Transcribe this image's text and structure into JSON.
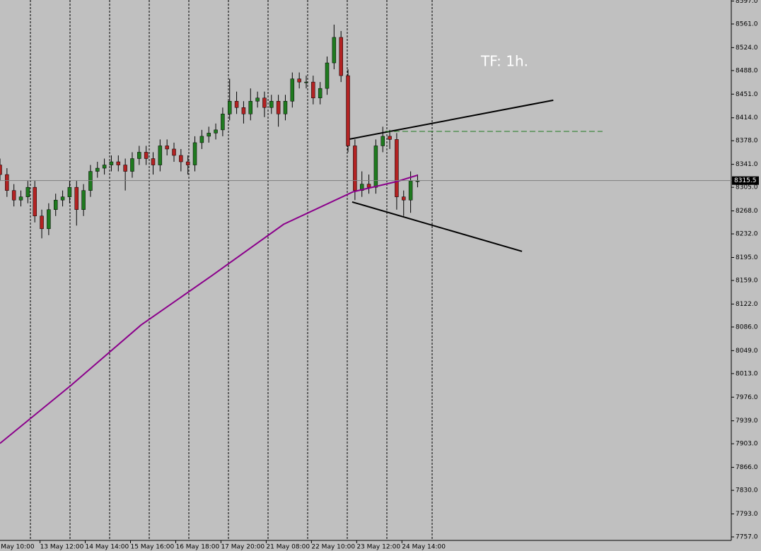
{
  "chart_data": {
    "type": "candlestick",
    "annotation": "TF: 1h.",
    "xlim": [
      0,
      420.3
    ],
    "ylim": [
      7751.5,
      8598.6
    ],
    "xticks": [
      {
        "value": -3,
        "label": "0 May 10:00"
      },
      {
        "value": 23,
        "label": "13 May 12:00"
      },
      {
        "value": 49,
        "label": "14 May 14:00"
      },
      {
        "value": 75,
        "label": "15 May 16:00"
      },
      {
        "value": 101,
        "label": "16 May 18:00"
      },
      {
        "value": 127,
        "label": "17 May 20:00"
      },
      {
        "value": 153,
        "label": "21 May 08:00"
      },
      {
        "value": 179,
        "label": "22 May 10:00"
      },
      {
        "value": 205,
        "label": "23 May 12:00"
      },
      {
        "value": 231,
        "label": "24 May 14:00"
      }
    ],
    "yticks": [
      {
        "value": 8597,
        "label": "8597.0"
      },
      {
        "value": 8561,
        "label": "8561.0"
      },
      {
        "value": 8524,
        "label": "8524.0"
      },
      {
        "value": 8488,
        "label": "8488.0"
      },
      {
        "value": 8451,
        "label": "8451.0"
      },
      {
        "value": 8414,
        "label": "8414.0"
      },
      {
        "value": 8378,
        "label": "8378.0"
      },
      {
        "value": 8341,
        "label": "8341.0"
      },
      {
        "value": 8305,
        "label": "8305.0"
      },
      {
        "value": 8268,
        "label": "8268.0"
      },
      {
        "value": 8232,
        "label": "8232.0"
      },
      {
        "value": 8195,
        "label": "8195.0"
      },
      {
        "value": 8159,
        "label": "8159.0"
      },
      {
        "value": 8122,
        "label": "8122.0"
      },
      {
        "value": 8086,
        "label": "8086.0"
      },
      {
        "value": 8049,
        "label": "8049.0"
      },
      {
        "value": 8013,
        "label": "8013.0"
      },
      {
        "value": 7976,
        "label": "7976.0"
      },
      {
        "value": 7939,
        "label": "7939.0"
      },
      {
        "value": 7903,
        "label": "7903.0"
      },
      {
        "value": 7866,
        "label": "7866.0"
      },
      {
        "value": 7830,
        "label": "7830.0"
      },
      {
        "value": 7793,
        "label": "7793.0"
      },
      {
        "value": 7757,
        "label": "7757.0"
      }
    ],
    "last_price": 8315.5,
    "up_color": "#1f7a1f",
    "down_color": "#b22222",
    "candles": {
      "x": [
        0,
        4,
        8,
        12,
        16,
        20,
        24,
        28,
        32,
        36,
        40,
        44,
        48,
        52,
        56,
        60,
        64,
        68,
        72,
        76,
        80,
        84,
        88,
        92,
        96,
        100,
        104,
        108,
        112,
        116,
        120,
        124,
        128,
        132,
        136,
        140,
        144,
        148,
        152,
        156,
        160,
        164,
        168,
        172,
        176,
        180,
        184,
        188,
        192,
        196,
        200,
        204,
        208,
        212,
        216,
        220,
        224,
        228,
        232,
        236,
        240
      ],
      "open": [
        8340,
        8325,
        8300,
        8285,
        8290,
        8305,
        8260,
        8240,
        8270,
        8285,
        8290,
        8305,
        8270,
        8300,
        8330,
        8335,
        8340,
        8345,
        8340,
        8330,
        8350,
        8360,
        8350,
        8340,
        8370,
        8365,
        8355,
        8345,
        8340,
        8375,
        8385,
        8390,
        8395,
        8420,
        8440,
        8430,
        8420,
        8440,
        8445,
        8430,
        8440,
        8420,
        8440,
        8475,
        8470,
        8470,
        8445,
        8460,
        8500,
        8540,
        8480,
        8370,
        8300,
        8310,
        8305,
        8370,
        8385,
        8380,
        8290,
        8285,
        8315
      ],
      "high": [
        8350,
        8335,
        8310,
        8300,
        8315,
        8315,
        8270,
        8280,
        8295,
        8300,
        8315,
        8315,
        8310,
        8340,
        8345,
        8350,
        8355,
        8355,
        8350,
        8360,
        8370,
        8370,
        8360,
        8380,
        8380,
        8375,
        8365,
        8355,
        8385,
        8395,
        8400,
        8405,
        8430,
        8475,
        8455,
        8440,
        8460,
        8455,
        8455,
        8450,
        8450,
        8450,
        8485,
        8485,
        8480,
        8480,
        8470,
        8510,
        8560,
        8550,
        8490,
        8380,
        8330,
        8325,
        8380,
        8400,
        8395,
        8390,
        8300,
        8330,
        8325
      ],
      "low": [
        8315,
        8290,
        8275,
        8275,
        8280,
        8250,
        8225,
        8230,
        8260,
        8275,
        8280,
        8245,
        8260,
        8290,
        8320,
        8325,
        8330,
        8330,
        8300,
        8320,
        8340,
        8340,
        8325,
        8330,
        8355,
        8345,
        8330,
        8325,
        8330,
        8365,
        8375,
        8380,
        8385,
        8410,
        8420,
        8405,
        8410,
        8430,
        8415,
        8420,
        8400,
        8410,
        8430,
        8460,
        8460,
        8435,
        8435,
        8450,
        8490,
        8470,
        8360,
        8285,
        8290,
        8295,
        8295,
        8360,
        8365,
        8270,
        8260,
        8265,
        8305
      ],
      "close": [
        8325,
        8300,
        8285,
        8290,
        8305,
        8260,
        8240,
        8270,
        8285,
        8290,
        8305,
        8270,
        8300,
        8330,
        8335,
        8340,
        8345,
        8340,
        8330,
        8350,
        8360,
        8350,
        8340,
        8370,
        8365,
        8355,
        8345,
        8340,
        8375,
        8385,
        8390,
        8395,
        8420,
        8440,
        8430,
        8420,
        8440,
        8445,
        8430,
        8440,
        8420,
        8440,
        8475,
        8470,
        8470,
        8445,
        8460,
        8500,
        8540,
        8480,
        8370,
        8300,
        8310,
        8305,
        8370,
        8385,
        8380,
        8290,
        8285,
        8315,
        8315
      ]
    },
    "ma": {
      "color": "#8b008b",
      "x": [
        0,
        41,
        81,
        122,
        163,
        203,
        228,
        240
      ],
      "values": [
        7903.6,
        7995,
        8089,
        8167,
        8247,
        8298,
        8314,
        8324
      ]
    },
    "overlays": [
      {
        "color": "#000000",
        "dash": false,
        "x": [
          201,
          318
        ],
        "values": [
          8380.6,
          8441.5
        ]
      },
      {
        "color": "#000000",
        "dash": false,
        "x": [
          202.4,
          300
        ],
        "values": [
          8282,
          8204.6
        ]
      },
      {
        "color": "#1f7a1f",
        "dash": true,
        "x": [
          221.5,
          346.3
        ],
        "values": [
          8392.7,
          8392.7
        ]
      }
    ]
  }
}
